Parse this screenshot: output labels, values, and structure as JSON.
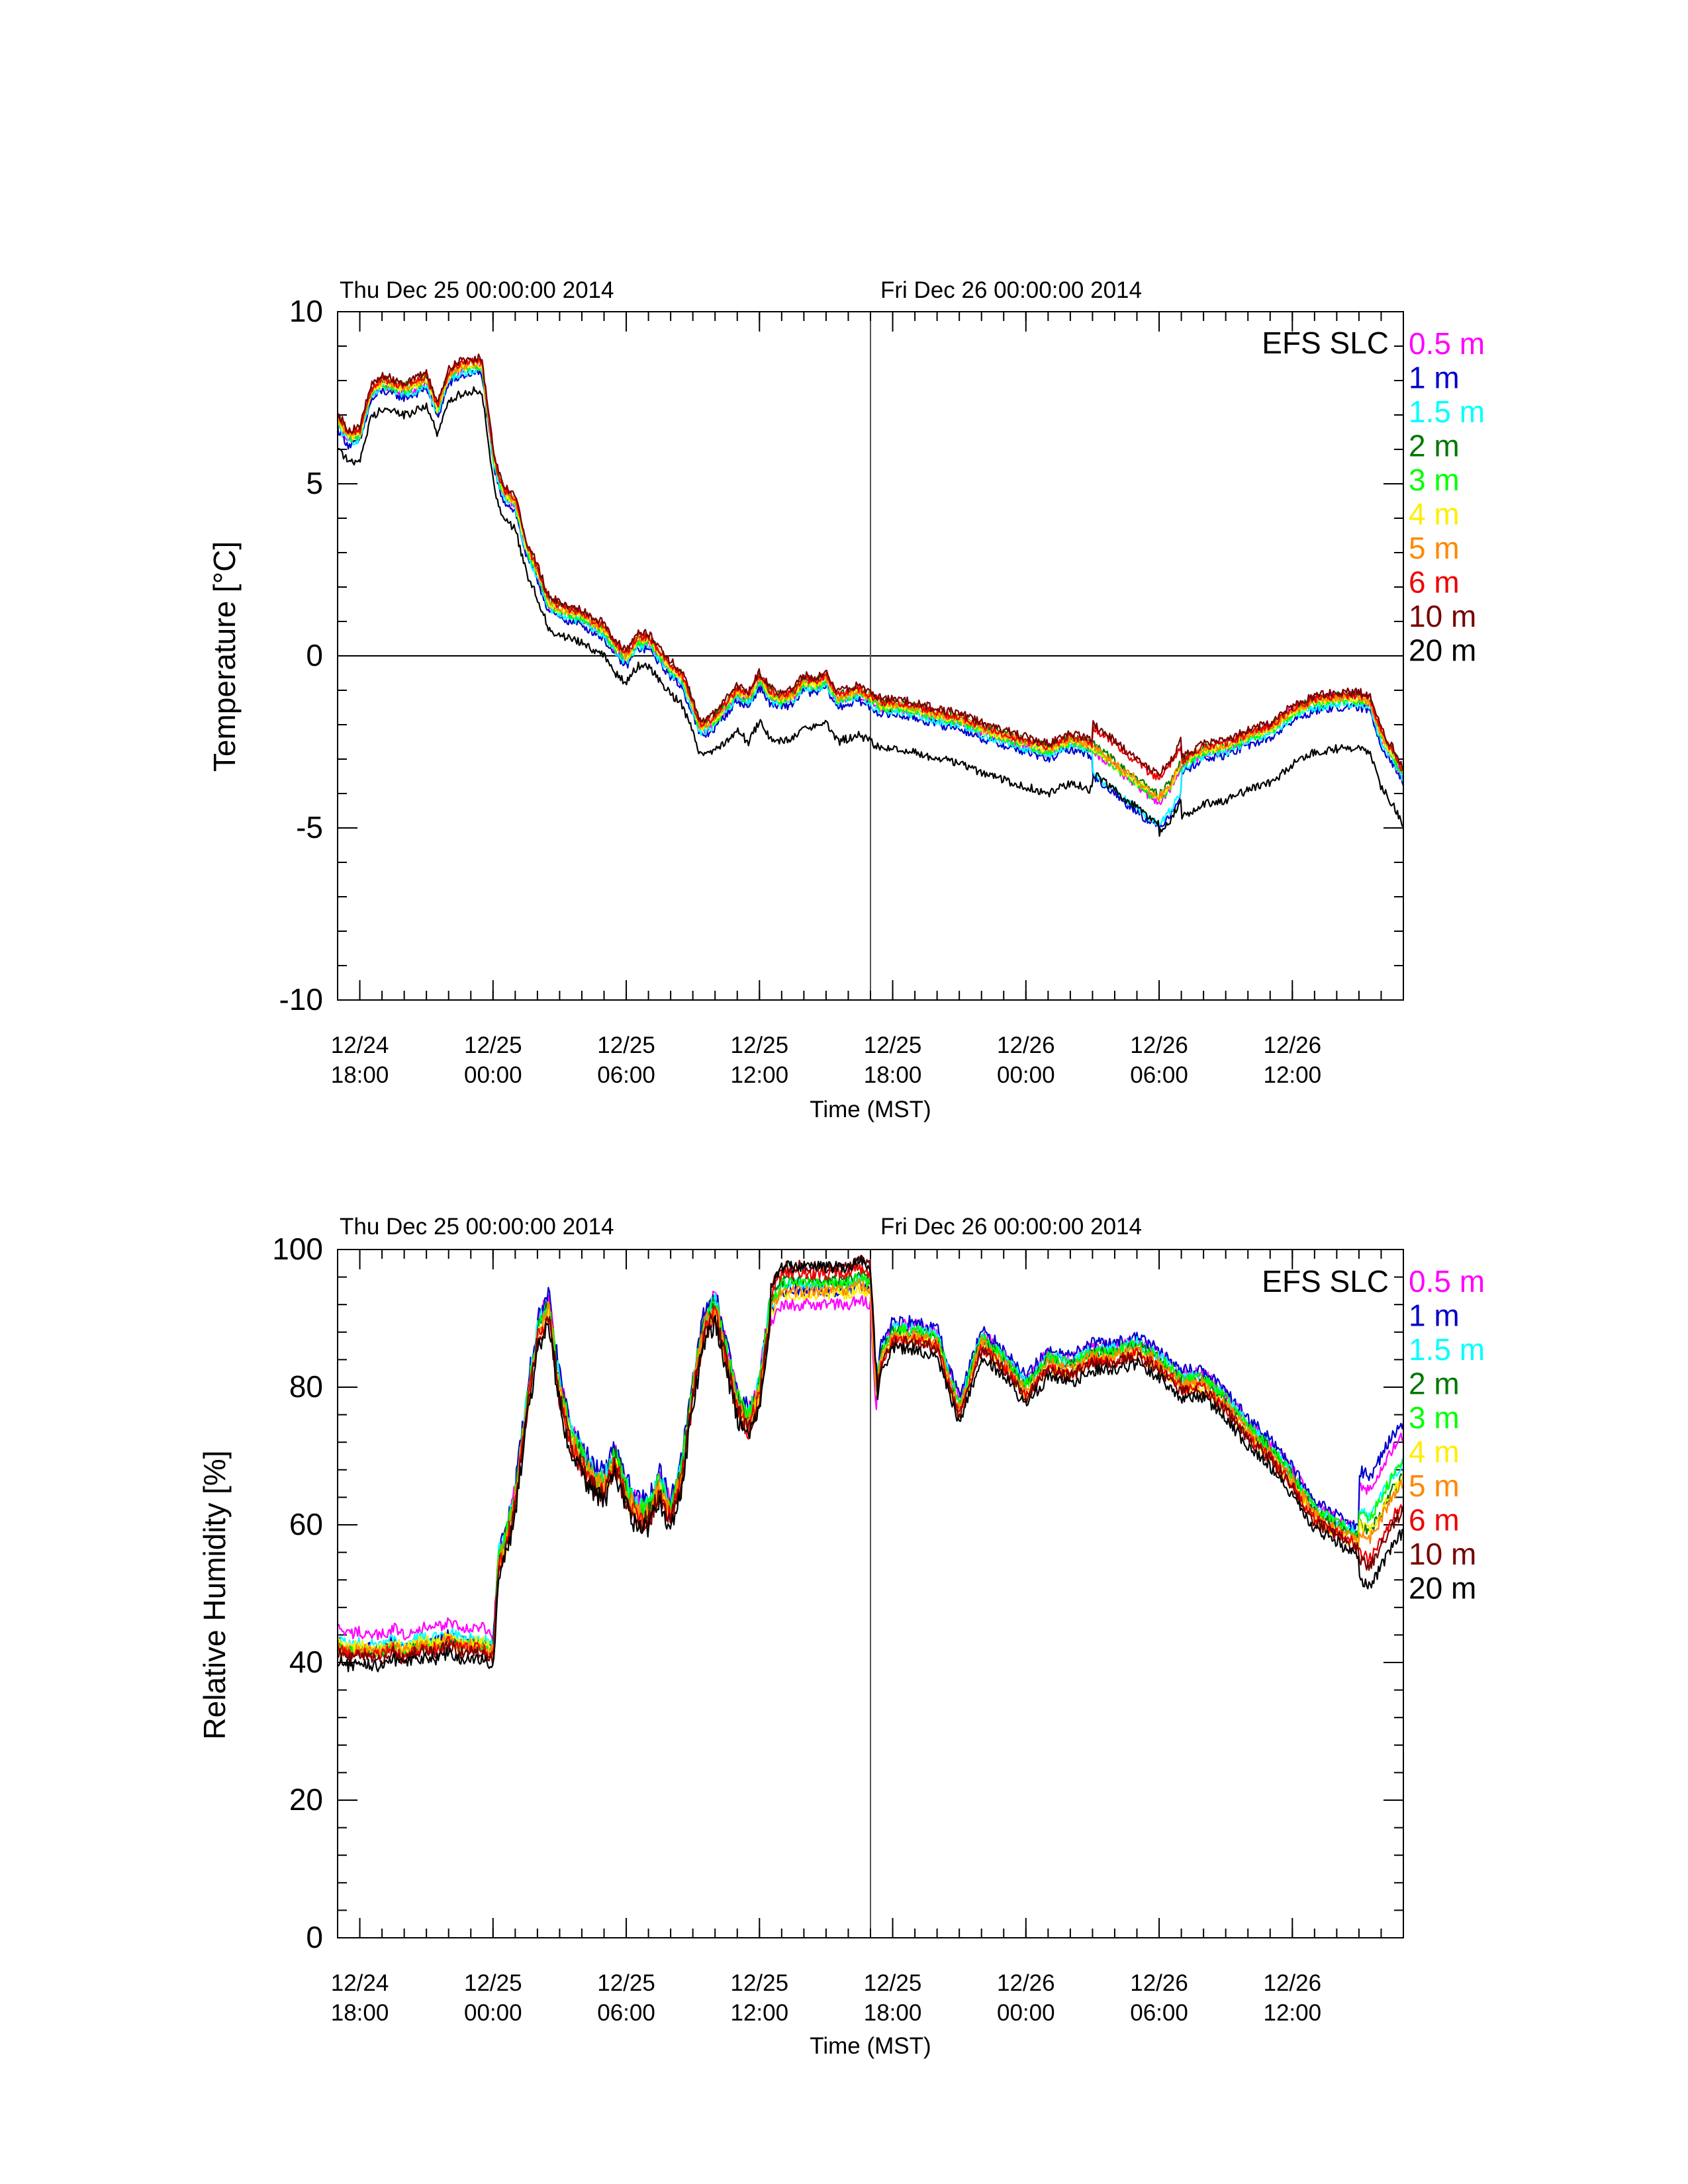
{
  "chart_data": [
    {
      "type": "line",
      "date_labels": [
        "Thu Dec 25 00:00:00 2014",
        "Fri Dec 26 00:00:00 2014"
      ],
      "site_label": "EFS SLC",
      "ylabel": "Temperature [°C]",
      "xlabel": "Time (MST)",
      "ylim": [
        -10,
        10
      ],
      "yticks": [
        "10",
        "5",
        "0",
        "-5",
        "-10"
      ],
      "x_unit": "hours since 12/24 18:00",
      "xlim": [
        -1,
        47
      ],
      "xticks": [
        {
          "line1": "12/24",
          "line2": "18:00",
          "hours": 0
        },
        {
          "line1": "12/25",
          "line2": "00:00",
          "hours": 6
        },
        {
          "line1": "12/25",
          "line2": "06:00",
          "hours": 12
        },
        {
          "line1": "12/25",
          "line2": "12:00",
          "hours": 18
        },
        {
          "line1": "12/25",
          "line2": "18:00",
          "hours": 24
        },
        {
          "line1": "12/26",
          "line2": "00:00",
          "hours": 30
        },
        {
          "line1": "12/26",
          "line2": "06:00",
          "hours": 36
        },
        {
          "line1": "12/26",
          "line2": "12:00",
          "hours": 42
        }
      ],
      "reference_lines": {
        "y": 0,
        "x_hours": 23
      }
    },
    {
      "type": "line",
      "date_labels": [
        "Thu Dec 25 00:00:00 2014",
        "Fri Dec 26 00:00:00 2014"
      ],
      "site_label": "EFS SLC",
      "ylabel": "Relative Humidity [%]",
      "xlabel": "Time (MST)",
      "ylim": [
        0,
        100
      ],
      "yticks": [
        "100",
        "80",
        "60",
        "40",
        "20",
        "0"
      ],
      "x_unit": "hours since 12/24 18:00",
      "xlim": [
        -1,
        47
      ],
      "xticks": [
        {
          "line1": "12/24",
          "line2": "18:00",
          "hours": 0
        },
        {
          "line1": "12/25",
          "line2": "00:00",
          "hours": 6
        },
        {
          "line1": "12/25",
          "line2": "06:00",
          "hours": 12
        },
        {
          "line1": "12/25",
          "line2": "12:00",
          "hours": 18
        },
        {
          "line1": "12/25",
          "line2": "18:00",
          "hours": 24
        },
        {
          "line1": "12/26",
          "line2": "00:00",
          "hours": 30
        },
        {
          "line1": "12/26",
          "line2": "06:00",
          "hours": 36
        },
        {
          "line1": "12/26",
          "line2": "12:00",
          "hours": 42
        }
      ],
      "reference_lines": {
        "x_hours": 23
      }
    }
  ],
  "series": [
    {
      "name": "0.5 m",
      "color": "#ff00ff"
    },
    {
      "name": "1 m",
      "color": "#0000cc"
    },
    {
      "name": "1.5 m",
      "color": "#00ffff"
    },
    {
      "name": "2 m",
      "color": "#007700"
    },
    {
      "name": "3 m",
      "color": "#00ff00"
    },
    {
      "name": "4 m",
      "color": "#ffee00"
    },
    {
      "name": "5 m",
      "color": "#ff8800"
    },
    {
      "name": "6 m",
      "color": "#ee0000"
    },
    {
      "name": "10 m",
      "color": "#770000"
    },
    {
      "name": "20 m",
      "color": "#000000"
    }
  ],
  "temp_profile": {
    "hours": [
      -1,
      -0.5,
      0,
      0.5,
      1,
      1.5,
      2,
      2.5,
      3,
      3.5,
      4,
      4.5,
      5,
      5.5,
      6,
      6.25,
      6.5,
      7,
      7.5,
      8,
      8.5,
      9,
      9.5,
      10,
      10.5,
      11,
      11.5,
      12,
      12.5,
      13,
      13.5,
      14,
      14.5,
      15,
      15.3,
      15.6,
      16,
      16.5,
      17,
      17.5,
      18,
      18.5,
      19,
      19.5,
      20,
      20.5,
      21,
      21.5,
      22,
      22.5,
      23,
      23.5,
      24,
      25,
      26,
      27,
      28,
      29,
      30,
      31,
      32,
      33,
      34,
      34.5,
      35,
      35.5,
      36,
      36.5,
      37,
      38,
      39,
      40,
      41,
      42,
      43,
      44,
      45,
      45.5,
      46,
      46.5,
      47
    ],
    "base": [
      6.7,
      6.2,
      6.3,
      7.5,
      7.8,
      7.7,
      7.6,
      7.7,
      7.9,
      7.0,
      8.0,
      8.2,
      8.3,
      8.3,
      5.7,
      5.0,
      4.6,
      4.3,
      3.0,
      2.3,
      1.4,
      1.2,
      1.1,
      1.0,
      0.8,
      0.6,
      0.1,
      -0.2,
      0.3,
      0.3,
      -0.1,
      -0.5,
      -0.8,
      -1.6,
      -2.2,
      -2.2,
      -2.0,
      -1.6,
      -1.2,
      -1.4,
      -0.8,
      -1.3,
      -1.4,
      -1.3,
      -0.9,
      -1.0,
      -0.8,
      -1.4,
      -1.3,
      -1.2,
      -1.4,
      -1.6,
      -1.6,
      -1.7,
      -1.9,
      -2.0,
      -2.3,
      -2.5,
      -2.7,
      -2.9,
      -2.6,
      -2.8,
      -3.3,
      -3.6,
      -3.8,
      -4.1,
      -4.3,
      -3.9,
      -3.3,
      -2.9,
      -2.8,
      -2.5,
      -2.3,
      -1.8,
      -1.5,
      -1.4,
      -1.4,
      -1.5,
      -2.5,
      -3.0,
      -3.6
    ]
  },
  "rh_profile": {
    "hours": [
      -1,
      -0.5,
      0,
      0.5,
      1,
      1.5,
      2,
      2.5,
      3,
      3.5,
      4,
      4.5,
      5,
      5.5,
      6,
      6.25,
      6.5,
      7,
      7.5,
      8,
      8.5,
      9,
      9.5,
      10,
      10.5,
      11,
      11.5,
      12,
      12.5,
      13,
      13.5,
      14,
      14.5,
      15,
      15.5,
      16,
      16.5,
      17,
      17.5,
      18,
      18.5,
      19,
      19.5,
      20,
      20.5,
      21,
      21.5,
      22,
      22.5,
      23,
      23.25,
      23.5,
      24,
      25,
      26,
      27,
      28,
      29,
      30,
      31,
      32,
      33,
      34,
      35,
      36,
      37,
      38,
      39,
      40,
      41,
      42,
      43,
      44,
      45,
      45.5,
      46,
      46.5,
      47
    ],
    "base": [
      42,
      41,
      41.5,
      41,
      41,
      42,
      41,
      42,
      42,
      42,
      43,
      42,
      42,
      42,
      41,
      55,
      57,
      64,
      77,
      88,
      92,
      80,
      73,
      70,
      67,
      66,
      70,
      65,
      62,
      62,
      66,
      62,
      68,
      80,
      89,
      92,
      85,
      78,
      75,
      80,
      92,
      95,
      95,
      95,
      95,
      95,
      95,
      95,
      96,
      95,
      80,
      85,
      88,
      88,
      87,
      77,
      87,
      84,
      80,
      84,
      83,
      85,
      85,
      86,
      84,
      81,
      81,
      78,
      74,
      71,
      67,
      62,
      60,
      58,
      57,
      60,
      63,
      65
    ]
  }
}
